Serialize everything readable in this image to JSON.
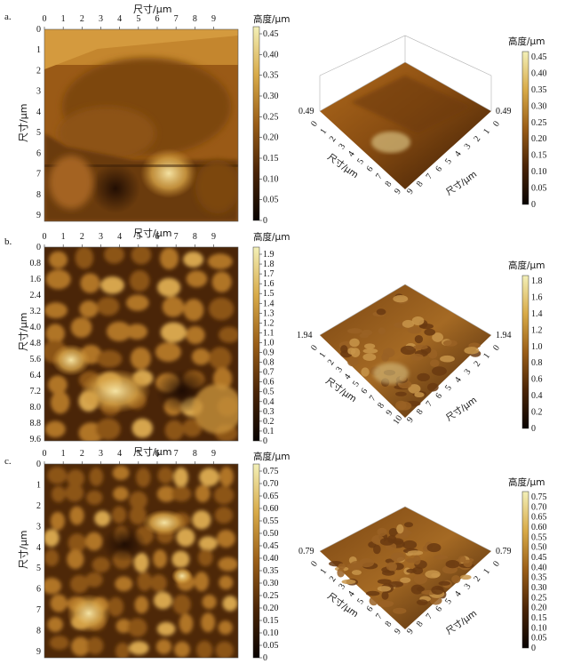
{
  "panels": [
    {
      "letter": "a.",
      "axis_label": "尺寸/μm",
      "top_ticks": [
        "0",
        "1",
        "2",
        "3",
        "4",
        "5",
        "6",
        "7",
        "8",
        "9"
      ],
      "left_ticks": [
        "0",
        "1",
        "2",
        "3",
        "4",
        "5",
        "6",
        "7",
        "8",
        "9"
      ],
      "colorbar_title": "高度/μm",
      "colorbar_ticks": [
        "0",
        "0.05",
        "0.10",
        "0.15",
        "0.20",
        "0.25",
        "0.30",
        "0.35",
        "0.40",
        "0.45"
      ],
      "threed": {
        "height_value": "0.49",
        "left_axis_ticks": [
          "0",
          "1",
          "2",
          "3",
          "4",
          "5",
          "6",
          "7",
          "8",
          "9"
        ],
        "right_axis_ticks": [
          "9",
          "8",
          "7",
          "6",
          "5",
          "4",
          "3",
          "2",
          "1",
          "0"
        ],
        "axis_label": "尺寸/μm",
        "colorbar_title": "高度/μm",
        "colorbar_ticks": [
          "0",
          "0.05",
          "0.10",
          "0.15",
          "0.20",
          "0.25",
          "0.30",
          "0.35",
          "0.40",
          "0.45"
        ]
      }
    },
    {
      "letter": "b.",
      "axis_label": "尺寸/μm",
      "top_ticks": [
        "0",
        "1",
        "2",
        "3",
        "4",
        "5",
        "6",
        "7",
        "8",
        "9"
      ],
      "left_ticks": [
        "0",
        "0.8",
        "1.6",
        "2.4",
        "3.2",
        "4.0",
        "4.8",
        "5.6",
        "6.4",
        "7.2",
        "8.0",
        "8.8",
        "9.6"
      ],
      "colorbar_title": "高度/μm",
      "colorbar_ticks": [
        "0",
        "0.1",
        "0.2",
        "0.3",
        "0.4",
        "0.5",
        "0.6",
        "0.7",
        "0.8",
        "0.9",
        "1.0",
        "1.1",
        "1.2",
        "1.3",
        "1.4",
        "1.5",
        "1.6",
        "1.7",
        "1.8",
        "1.9"
      ],
      "threed": {
        "height_value": "1.94",
        "left_axis_ticks": [
          "0",
          "1",
          "2",
          "3",
          "4",
          "5",
          "6",
          "7",
          "8",
          "9",
          "10"
        ],
        "right_axis_ticks": [
          "9",
          "8",
          "7",
          "6",
          "5",
          "4",
          "3",
          "2",
          "1",
          "0"
        ],
        "axis_label": "尺寸/μm",
        "colorbar_title": "高度/μm",
        "colorbar_ticks": [
          "0",
          "0.2",
          "0.4",
          "0.6",
          "0.8",
          "1.0",
          "1.2",
          "1.4",
          "1.6",
          "1.8"
        ]
      }
    },
    {
      "letter": "c.",
      "axis_label": "尺寸/μm",
      "top_ticks": [
        "0",
        "1",
        "2",
        "3",
        "4",
        "5",
        "6",
        "7",
        "8",
        "9"
      ],
      "left_ticks": [
        "0",
        "1",
        "2",
        "3",
        "4",
        "5",
        "6",
        "7",
        "8",
        "9"
      ],
      "colorbar_title": "高度/μm",
      "colorbar_ticks": [
        "0",
        "0.05",
        "0.10",
        "0.15",
        "0.20",
        "0.25",
        "0.30",
        "0.35",
        "0.40",
        "0.45",
        "0.50",
        "0.55",
        "0.60",
        "0.65",
        "0.70",
        "0.75"
      ],
      "threed": {
        "height_value": "0.79",
        "left_axis_ticks": [
          "0",
          "1",
          "2",
          "3",
          "4",
          "5",
          "6",
          "7",
          "8",
          "9"
        ],
        "right_axis_ticks": [
          "9",
          "8",
          "7",
          "6",
          "5",
          "4",
          "3",
          "2",
          "1",
          "0"
        ],
        "axis_label": "尺寸/μm",
        "colorbar_title": "高度/μm",
        "colorbar_ticks": [
          "0",
          "0.05",
          "0.10",
          "0.15",
          "0.20",
          "0.25",
          "0.30",
          "0.35",
          "0.40",
          "0.45",
          "0.50",
          "0.55",
          "0.60",
          "0.65",
          "0.70",
          "0.75"
        ]
      }
    }
  ],
  "colors": {
    "afm_dark": "#1e0d02",
    "afm_mid": "#8a5212",
    "afm_light": "#f2e0a0",
    "colorbar_top": "#f3f0b8"
  }
}
